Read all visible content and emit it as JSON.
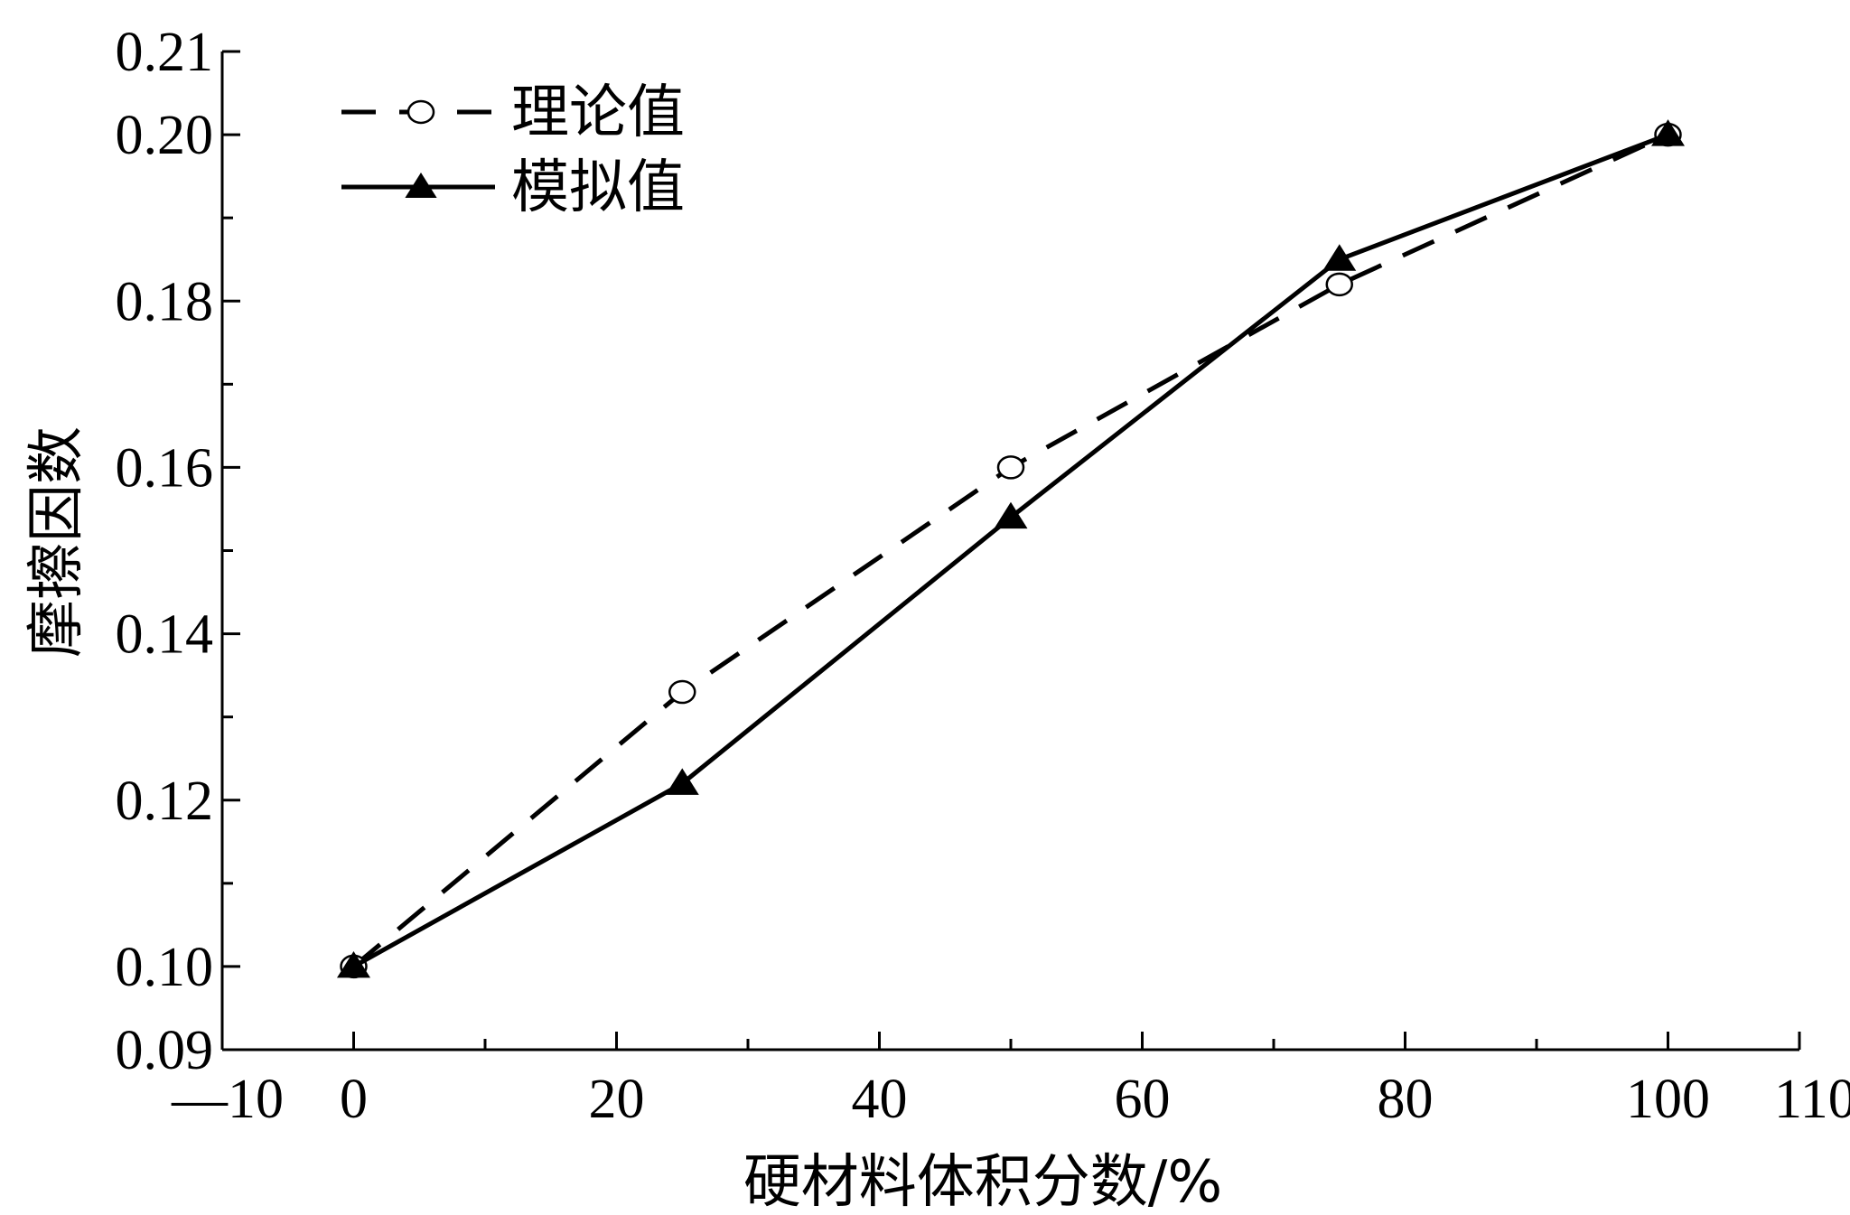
{
  "chart_data": {
    "type": "line",
    "xlabel": "硬材料体积分数/%",
    "ylabel": "摩擦因数",
    "xlim": [
      -10,
      110
    ],
    "ylim": [
      0.09,
      0.21
    ],
    "x_ticks": [
      {
        "value": -10,
        "label": "—10"
      },
      {
        "value": 0,
        "label": "0"
      },
      {
        "value": 20,
        "label": "20"
      },
      {
        "value": 40,
        "label": "40"
      },
      {
        "value": 60,
        "label": "60"
      },
      {
        "value": 80,
        "label": "80"
      },
      {
        "value": 100,
        "label": "100"
      },
      {
        "value": 110,
        "label": "110"
      }
    ],
    "x_minor_ticks": [
      10,
      30,
      50,
      70,
      90
    ],
    "y_ticks": [
      {
        "value": 0.09,
        "label": "0.09"
      },
      {
        "value": 0.1,
        "label": "0.10"
      },
      {
        "value": 0.12,
        "label": "0.12"
      },
      {
        "value": 0.14,
        "label": "0.14"
      },
      {
        "value": 0.16,
        "label": "0.16"
      },
      {
        "value": 0.18,
        "label": "0.18"
      },
      {
        "value": 0.2,
        "label": "0.20"
      },
      {
        "value": 0.21,
        "label": "0.21"
      }
    ],
    "y_minor_ticks": [
      0.11,
      0.13,
      0.15,
      0.17,
      0.19
    ],
    "x": [
      0,
      25,
      50,
      75,
      100
    ],
    "series": [
      {
        "name": "理论值",
        "style": "dashed",
        "marker": "open-circle",
        "values": [
          0.1,
          0.133,
          0.16,
          0.182,
          0.2
        ]
      },
      {
        "name": "模拟值",
        "style": "solid",
        "marker": "filled-triangle",
        "values": [
          0.1,
          0.122,
          0.154,
          0.185,
          0.2
        ]
      }
    ],
    "legend": "top-left",
    "grid": false,
    "color": "#000000"
  }
}
